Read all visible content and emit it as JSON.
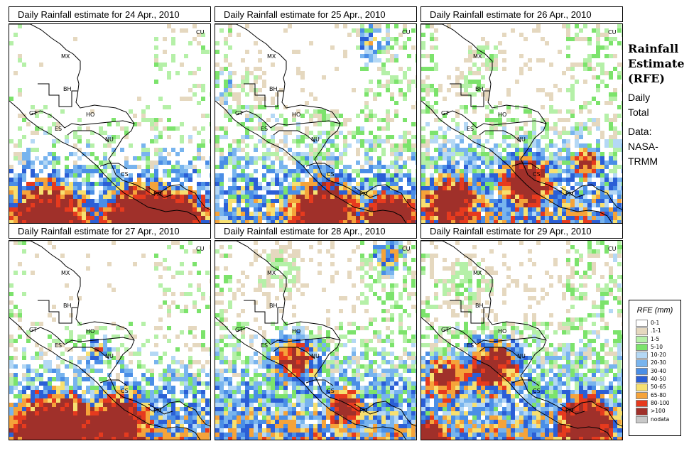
{
  "panels": [
    {
      "title": "Daily Rainfall estimate for  24 Apr., 2010",
      "day": 24
    },
    {
      "title": "Daily Rainfall estimate for  25 Apr., 2010",
      "day": 25
    },
    {
      "title": "Daily Rainfall estimate for  26 Apr., 2010",
      "day": 26
    },
    {
      "title": "Daily Rainfall estimate for  27 Apr., 2010",
      "day": 27
    },
    {
      "title": "Daily Rainfall estimate for  28 Apr., 2010",
      "day": 28
    },
    {
      "title": "Daily Rainfall estimate for  29 Apr., 2010",
      "day": 29
    }
  ],
  "country_labels": [
    "MX",
    "BH",
    "GT",
    "HO",
    "ES",
    "NU",
    "CS",
    "PM",
    "CU"
  ],
  "title_block": {
    "line1": "Rainfall",
    "line2": "Estimate",
    "line3": "(RFE)",
    "sub1": "Daily",
    "sub2": "Total",
    "data1": "Data:",
    "data2": "NASA-",
    "data3": "TRMM"
  },
  "legend": {
    "title": "RFE (mm)",
    "items": [
      {
        "label": "0-1",
        "color": "#ffffff"
      },
      {
        "label": ".1-1",
        "color": "#e5d8bf"
      },
      {
        "label": "1-5",
        "color": "#b5f0a8"
      },
      {
        "label": "5-10",
        "color": "#7ce36c"
      },
      {
        "label": "10-20",
        "color": "#b4d8f5"
      },
      {
        "label": "20-30",
        "color": "#78b4ee"
      },
      {
        "label": "30-40",
        "color": "#4a8ee6"
      },
      {
        "label": "40-50",
        "color": "#2b5fd6"
      },
      {
        "label": "50-65",
        "color": "#f7e070"
      },
      {
        "label": "65-80",
        "color": "#f5a33a"
      },
      {
        "label": "80-100",
        "color": "#e63a1e"
      },
      {
        "label": ">100",
        "color": "#a0302a"
      },
      {
        "label": "nodata",
        "color": "#c8c8c8"
      }
    ]
  }
}
